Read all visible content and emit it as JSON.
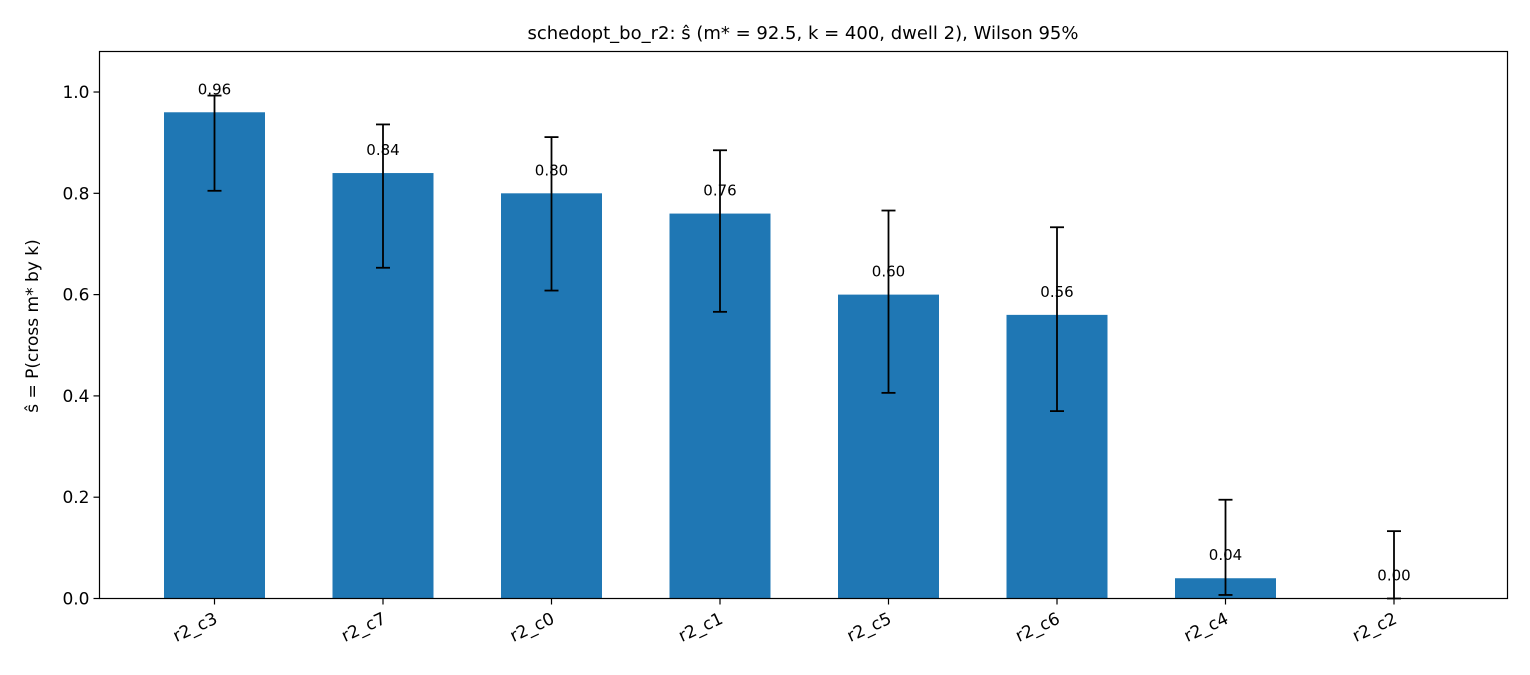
{
  "chart_data": {
    "type": "bar",
    "title": "schedopt_bo_r2: ŝ (m* = 92.5, k = 400, dwell 2), Wilson 95%",
    "ylabel": "ŝ = P(cross m* by k)",
    "xlabel": "",
    "ylim": [
      0,
      1.08
    ],
    "yticks": [
      0.0,
      0.2,
      0.4,
      0.6,
      0.8,
      1.0
    ],
    "ytick_labels": [
      "0.0",
      "0.2",
      "0.4",
      "0.6",
      "0.8",
      "1.0"
    ],
    "categories": [
      "r2_c3",
      "r2_c7",
      "r2_c0",
      "r2_c1",
      "r2_c5",
      "r2_c6",
      "r2_c4",
      "r2_c2"
    ],
    "values": [
      0.96,
      0.84,
      0.8,
      0.76,
      0.6,
      0.56,
      0.04,
      0.0
    ],
    "value_labels": [
      "0.96",
      "0.84",
      "0.80",
      "0.76",
      "0.60",
      "0.56",
      "0.04",
      "0.00"
    ],
    "ci_low": [
      0.805,
      0.653,
      0.608,
      0.566,
      0.406,
      0.37,
      0.007,
      0.0
    ],
    "ci_high": [
      0.993,
      0.936,
      0.911,
      0.885,
      0.766,
      0.733,
      0.195,
      0.133
    ],
    "bar_color": "#1f77b4",
    "grid": false,
    "legend": "none"
  }
}
